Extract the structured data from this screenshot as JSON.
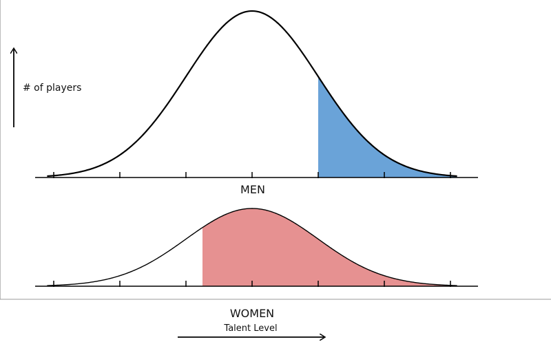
{
  "chart_data": [
    {
      "type": "area",
      "title": "MEN",
      "ylabel": "# of players",
      "distribution": "normal",
      "mean": 0,
      "sd": 1,
      "x_range": [
        -3.1,
        3.1
      ],
      "shaded_from": 1,
      "shaded_to": 3.1,
      "shade_color": "#6aa3d8",
      "curve_color": "#000000"
    },
    {
      "type": "area",
      "title": "WOMEN",
      "xlabel": "Talent Level",
      "distribution": "normal",
      "mean": 0,
      "sd": 1,
      "x_range": [
        -3.1,
        3.1
      ],
      "shaded_from": -0.75,
      "shaded_to": 3.1,
      "shade_color": "#e69191",
      "curve_color": "#000000"
    }
  ]
}
